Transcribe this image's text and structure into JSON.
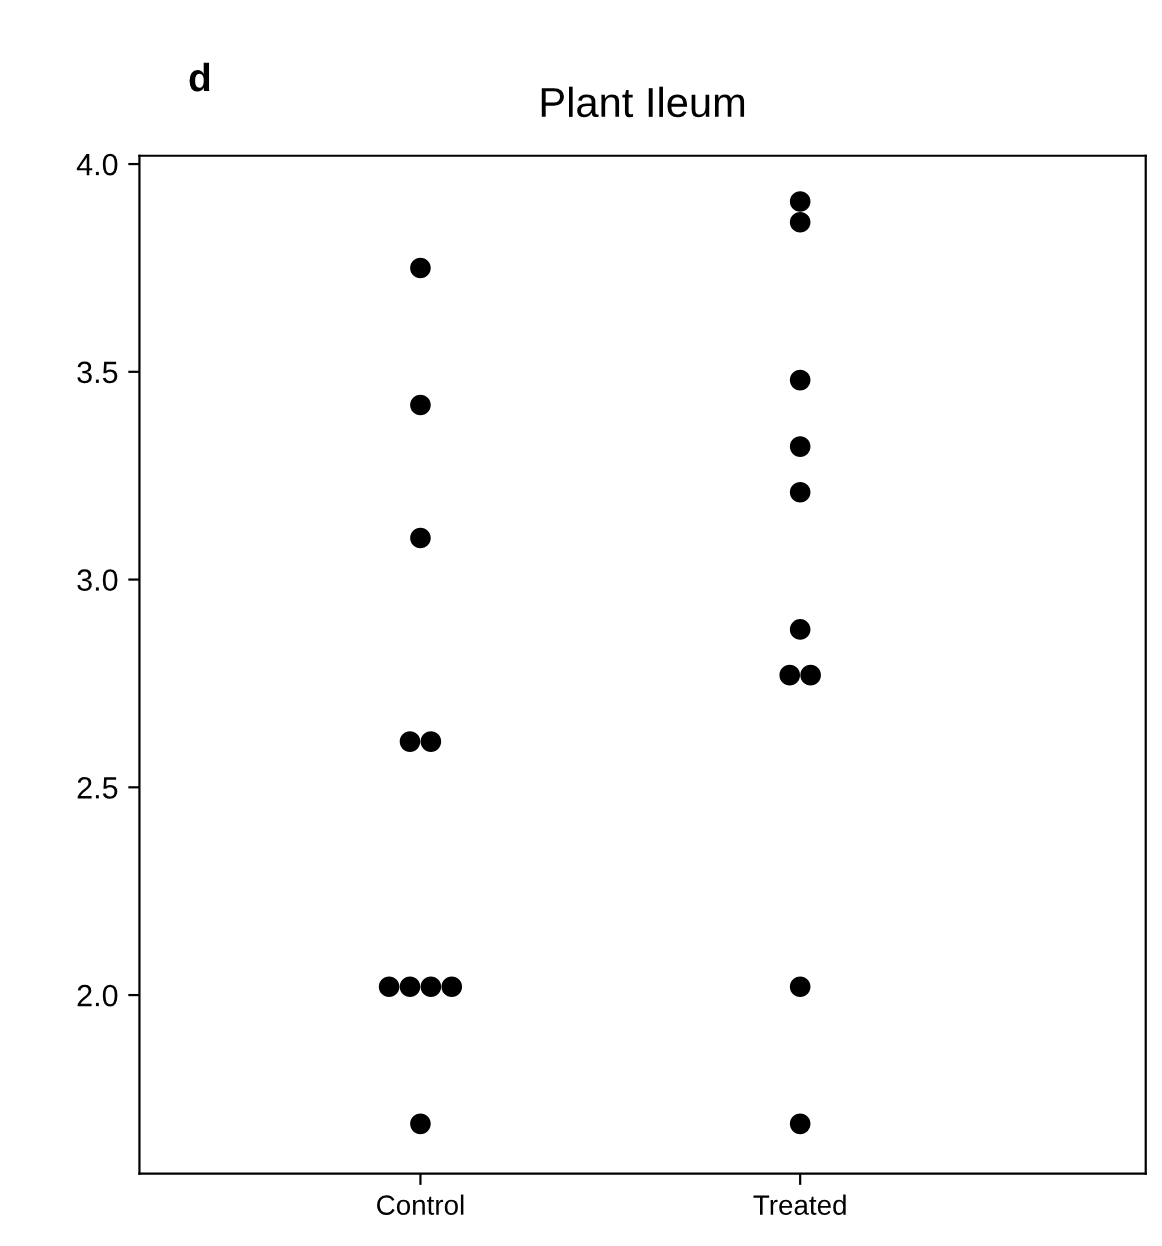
{
  "chart_data": {
    "type": "scatter",
    "title": "Plant Ileum",
    "annotations": [
      "d"
    ],
    "categories": [
      "Control",
      "Treated"
    ],
    "series": [
      {
        "color": "#000000",
        "x": [
          "Control",
          "Control",
          "Control",
          "Control",
          "Control",
          "Control",
          "Control",
          "Control",
          "Control",
          "Control",
          "Treated",
          "Treated",
          "Treated",
          "Treated",
          "Treated",
          "Treated",
          "Treated",
          "Treated",
          "Treated",
          "Treated"
        ],
        "values": [
          3.75,
          3.42,
          3.1,
          2.61,
          2.61,
          2.02,
          2.02,
          2.02,
          2.02,
          1.69,
          3.91,
          3.86,
          3.48,
          3.32,
          3.21,
          2.88,
          2.77,
          2.77,
          2.02,
          1.69
        ]
      }
    ],
    "ylim": [
      1.57,
      4.02
    ],
    "yticks": [
      {
        "value": 2.0,
        "label": "2.0"
      },
      {
        "value": 2.5,
        "label": "2.5"
      },
      {
        "value": 3.0,
        "label": "3.0"
      },
      {
        "value": 3.5,
        "label": "3.5"
      },
      {
        "value": 4.0,
        "label": "4.0"
      }
    ],
    "marker": "circle",
    "grid": false,
    "legend": false
  }
}
